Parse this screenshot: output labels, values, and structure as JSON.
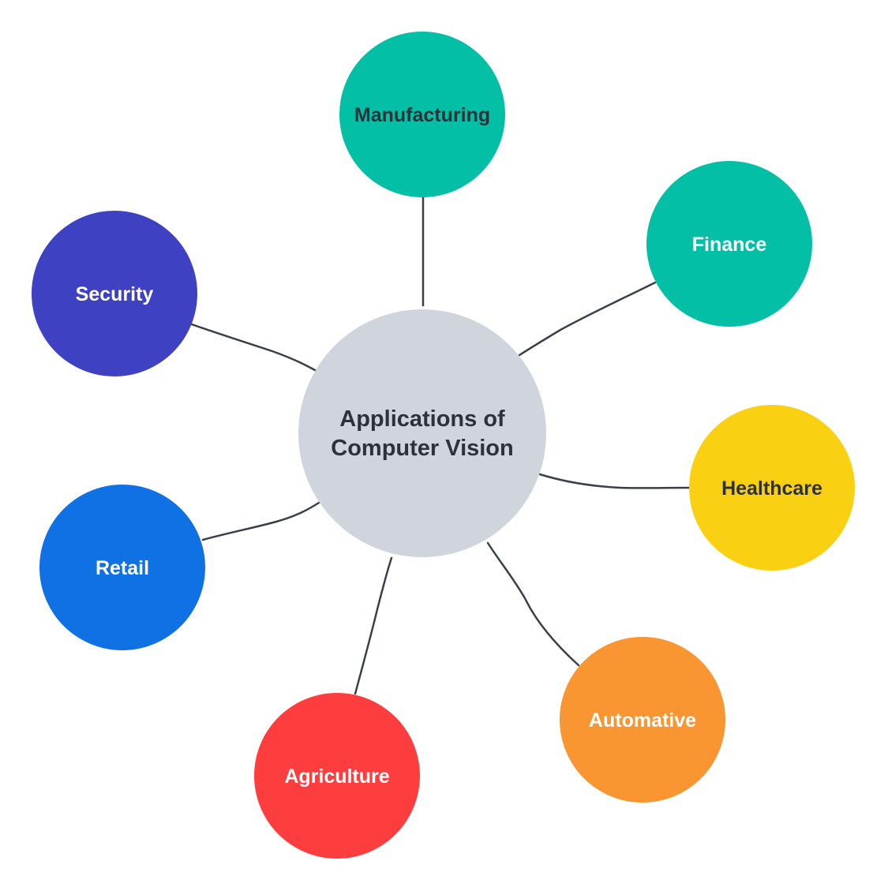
{
  "center": {
    "label_lines": [
      "Applications of",
      "Computer Vision"
    ],
    "color": "#d0d5dd",
    "text_color": "#2e3138"
  },
  "nodes": [
    {
      "id": "manufacturing",
      "label": "Manufacturing",
      "color": "#03bfa6",
      "text_color": "#2e3138"
    },
    {
      "id": "finance",
      "label": "Finance",
      "color": "#03bfa6",
      "text_color": "#ffffff"
    },
    {
      "id": "healthcare",
      "label": "Healthcare",
      "color": "#fad013",
      "text_color": "#2e3138"
    },
    {
      "id": "automative",
      "label": "Automative",
      "color": "#f99631",
      "text_color": "#ffffff"
    },
    {
      "id": "agriculture",
      "label": "Agriculture",
      "color": "#fe3e3e",
      "text_color": "#ffffff"
    },
    {
      "id": "retail",
      "label": "Retail",
      "color": "#1071e5",
      "text_color": "#ffffff"
    },
    {
      "id": "security",
      "label": "Security",
      "color": "#3e41c1",
      "text_color": "#ffffff"
    }
  ],
  "connector_color": "#3a3f4a"
}
